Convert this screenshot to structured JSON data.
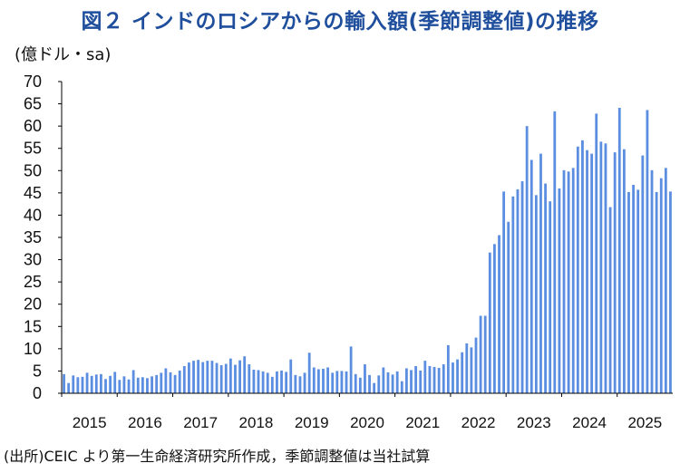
{
  "title": "図２ インドのロシアからの輸入額(季節調整値)の推移",
  "unit_label": "(億ドル・sa)",
  "source": "(出所)CEIC より第一生命経済研究所作成，季節調整値は当社試算",
  "colors": {
    "bar": "#5b8ee0",
    "title": "#1f4e9c",
    "axis": "#000000"
  },
  "chart_data": {
    "type": "bar",
    "ylim": [
      0,
      70
    ],
    "yticks": [
      0,
      5,
      10,
      15,
      20,
      25,
      30,
      35,
      40,
      45,
      50,
      55,
      60,
      65,
      70
    ],
    "xticks": [
      "2015",
      "2016",
      "2017",
      "2018",
      "2019",
      "2020",
      "2021",
      "2022",
      "2023",
      "2024",
      "2025"
    ],
    "start": "2015-01",
    "grid": false,
    "series": [
      {
        "name": "",
        "values": [
          4.3,
          2.3,
          4.0,
          3.6,
          3.7,
          4.6,
          3.9,
          4.2,
          4.3,
          3.2,
          3.9,
          4.8,
          3.0,
          3.8,
          3.1,
          5.2,
          3.5,
          3.6,
          3.4,
          3.8,
          4.1,
          4.6,
          5.6,
          4.7,
          4.1,
          5.1,
          6.1,
          6.9,
          7.3,
          7.5,
          7.0,
          7.3,
          7.3,
          6.8,
          6.3,
          6.6,
          7.8,
          6.4,
          7.4,
          8.3,
          6.5,
          5.3,
          5.2,
          4.9,
          4.6,
          3.7,
          4.9,
          5.1,
          4.8,
          7.6,
          4.1,
          3.8,
          4.6,
          9.1,
          5.8,
          5.4,
          5.5,
          5.8,
          4.6,
          5.0,
          5.0,
          4.9,
          10.5,
          4.3,
          3.5,
          6.5,
          4.1,
          2.3,
          4.0,
          5.8,
          4.7,
          4.2,
          4.9,
          2.7,
          5.6,
          5.2,
          6.1,
          5.1,
          7.3,
          6.1,
          5.9,
          5.7,
          6.5,
          10.8,
          6.9,
          7.6,
          9.2,
          11.2,
          10.3,
          12.5,
          17.4,
          17.4,
          31.6,
          33.5,
          35.5,
          45.3,
          38.5,
          44.2,
          45.8,
          47.6,
          60.0,
          52.4,
          44.5,
          53.8,
          47.1,
          43.1,
          63.3,
          46.0,
          50.1,
          49.8,
          50.6,
          55.4,
          56.8,
          54.6,
          53.8,
          62.8,
          56.5,
          56.1,
          41.8,
          54.1,
          64.1,
          54.8,
          45.2,
          46.8,
          45.7,
          53.4,
          63.6,
          50.1,
          45.2,
          48.3,
          50.6,
          45.3
        ]
      }
    ]
  }
}
